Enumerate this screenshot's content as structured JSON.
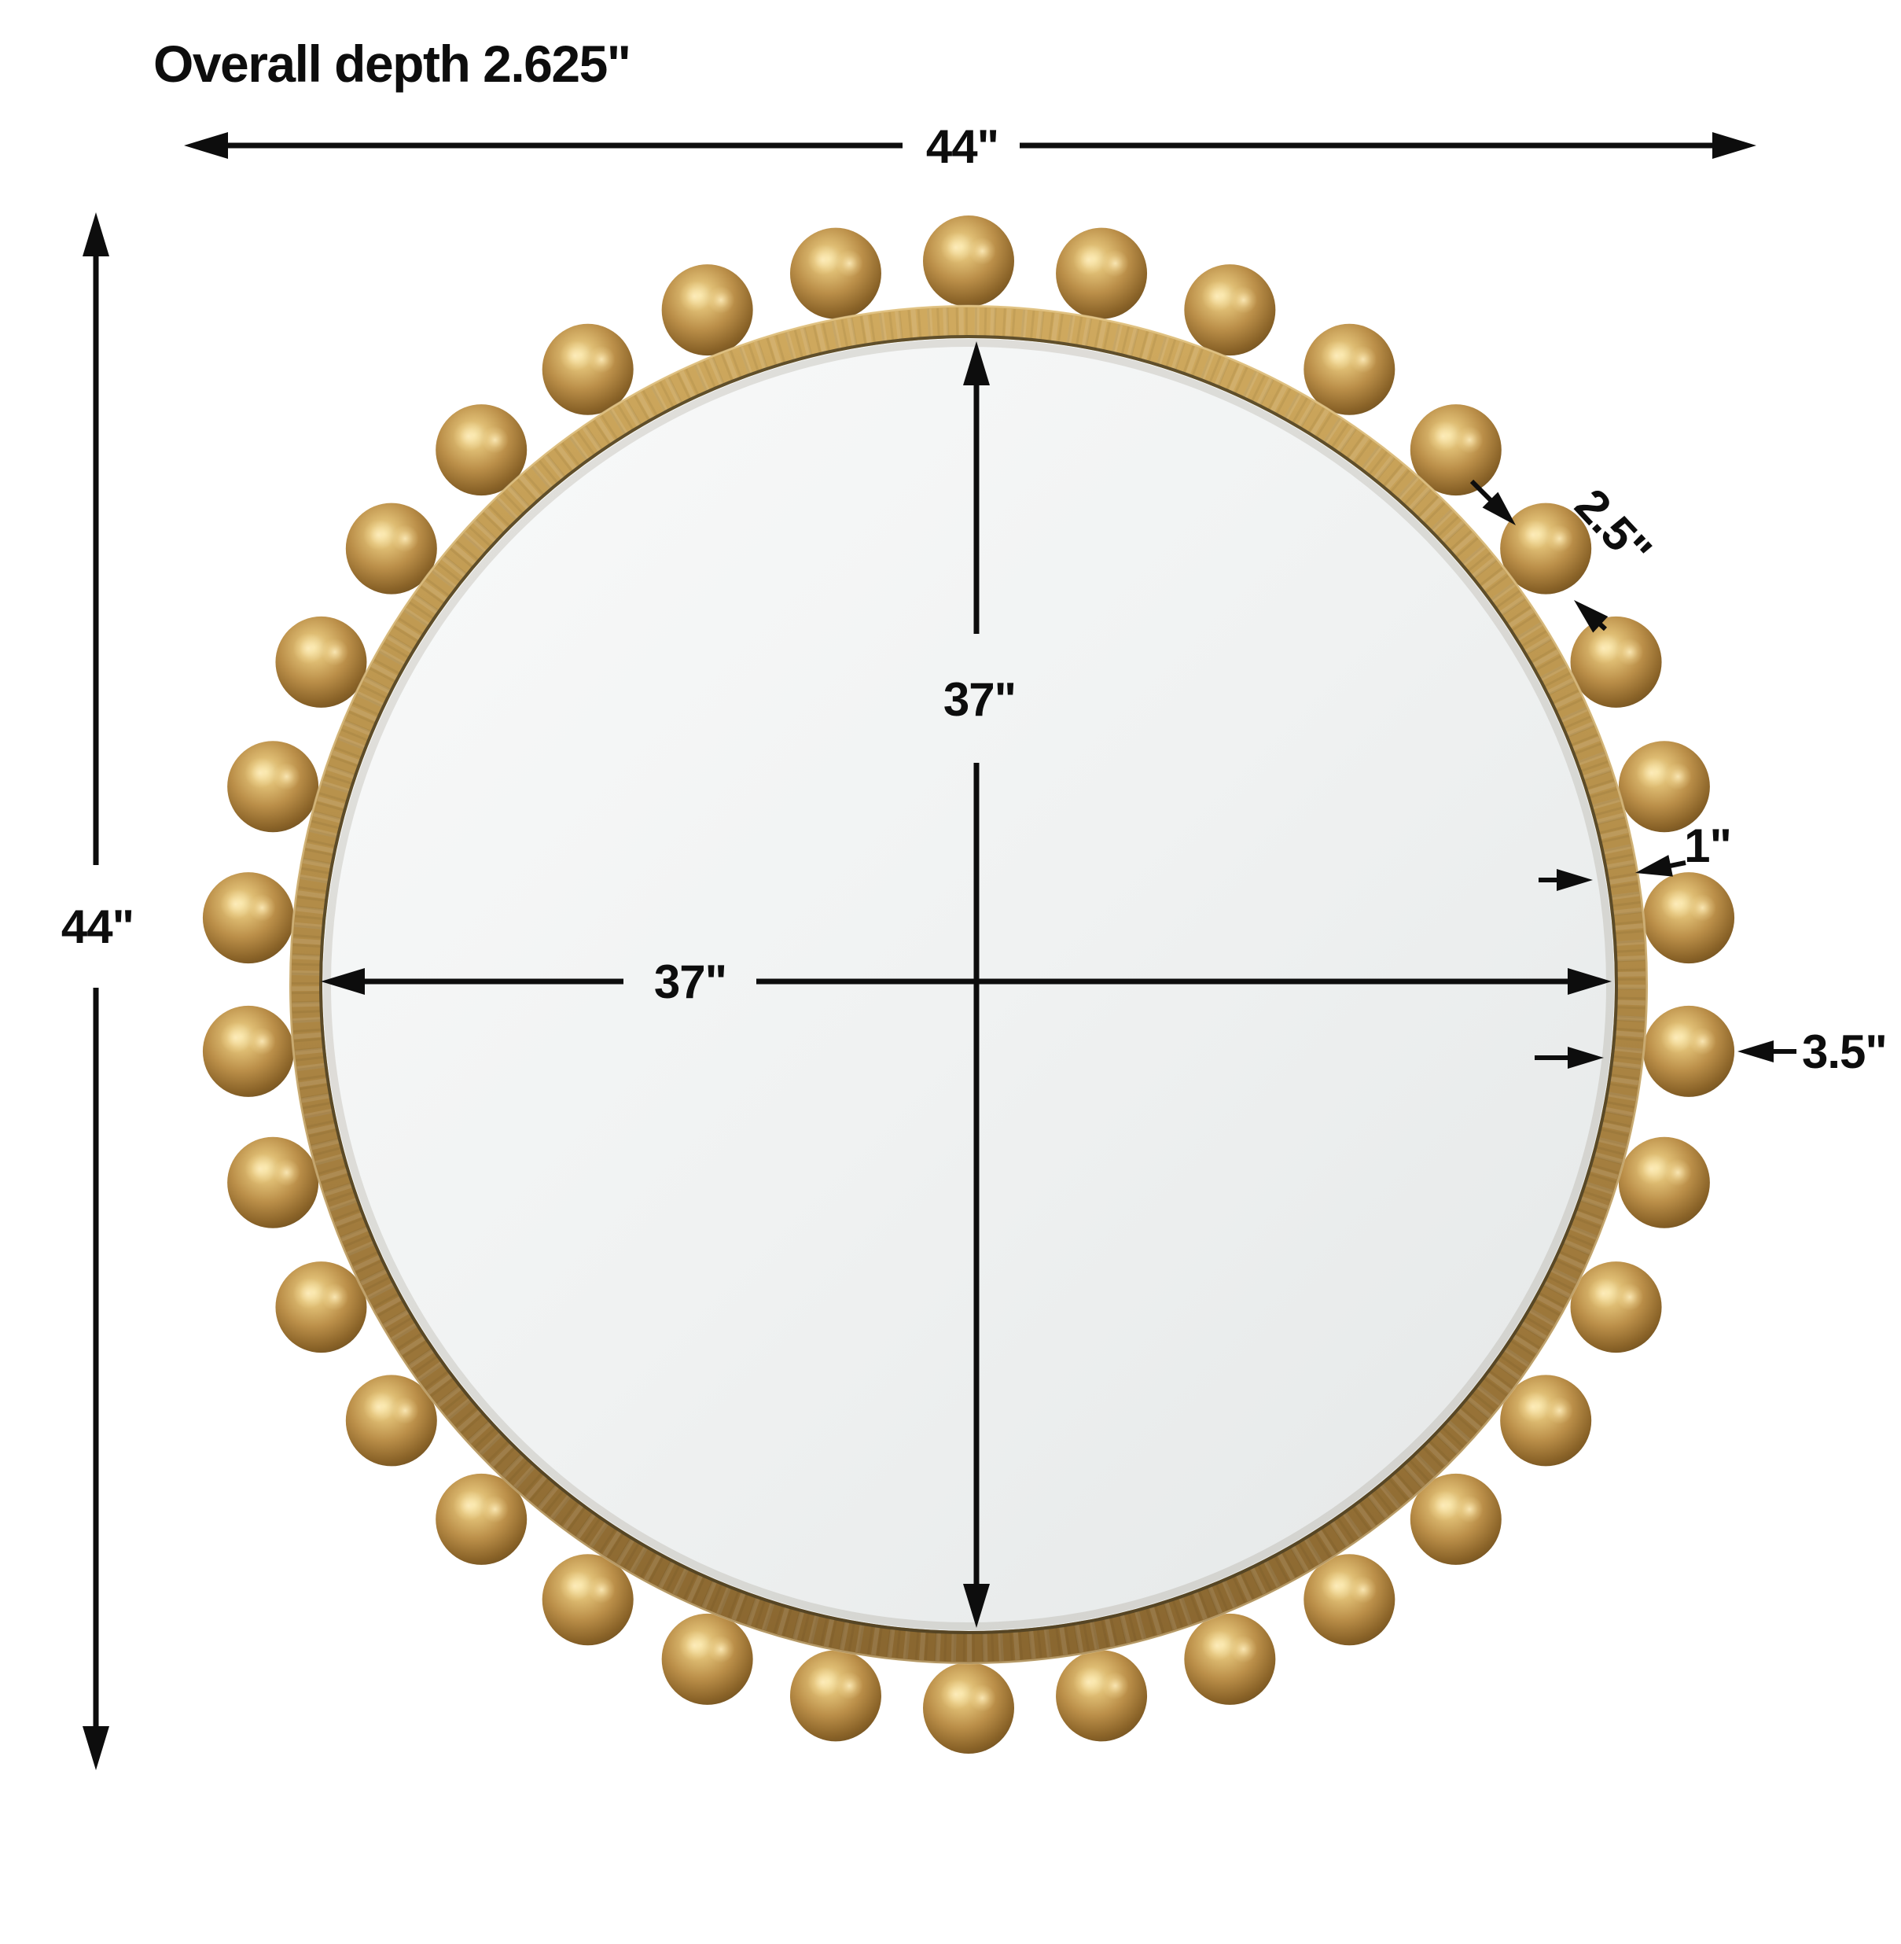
{
  "heading": {
    "text": "Overall depth 2.625\""
  },
  "dimensions": {
    "overall_width": "44\"",
    "overall_height": "44\"",
    "mirror_height": "37\"",
    "mirror_width": "37\"",
    "frame_width": "1\"",
    "bead_diameter": "2.5\"",
    "frame_with_bead_width": "3.5\""
  },
  "figure": {
    "type": "round-beaded-wall-mirror",
    "bead_count": 34,
    "colors": {
      "line": "#0d0d0d",
      "text": "#0d0d0d",
      "frame_gold_light": "#cfa95e",
      "frame_gold_mid": "#b18a48",
      "frame_gold_dark": "#8a6730",
      "bead_highlight": "#f7e7ae",
      "bead_light": "#debc72",
      "bead_mid": "#bb8f49",
      "bead_dark": "#8a6328",
      "bead_edge": "#64481d",
      "glass_light": "#f9fafa",
      "glass_mid": "#f0f2f2",
      "glass_dark": "#e6e8e8",
      "glass_edge_line": "#4c3f22"
    }
  }
}
